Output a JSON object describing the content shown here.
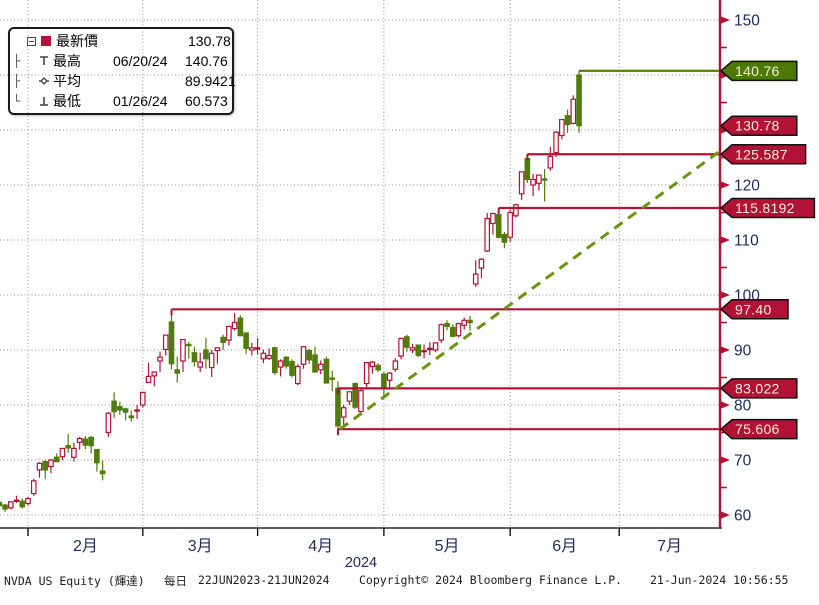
{
  "legend": {
    "rows": [
      {
        "icon": "last-price-square",
        "label": "最新價",
        "date": "",
        "value": "130.78"
      },
      {
        "icon": "high-marker",
        "label": "最高",
        "date": "06/20/24",
        "value": "140.76"
      },
      {
        "icon": "average-marker",
        "label": "平均",
        "date": "",
        "value": "89.9421"
      },
      {
        "icon": "low-marker",
        "label": "最低",
        "date": "01/26/24",
        "value": "60.573"
      }
    ]
  },
  "footer": {
    "security": "NVDA US Equity (輝達)",
    "periodicity": "每日",
    "range": "22JUN2023-21JUN2024",
    "copyright": "Copyright© 2024 Bloomberg Finance L.P.",
    "timestamp": "21-Jun-2024 10:56:55"
  },
  "colors": {
    "up": "#b11236",
    "down": "#4f7c0a",
    "axis_red": "#b11236",
    "tag_green": "#4c7a05",
    "tag_text": "#f5efd9",
    "grid": "#909090",
    "tick_label": "#1e2a5e",
    "trendline": "#68940e",
    "x_axis_black": "#000000"
  },
  "chart_data": {
    "type": "candlestick",
    "title": "NVDA US Equity (輝達) daily candles 22JUN2023-21JUN2024 (visible window Jan-Jul 2024)",
    "legend_position": "top-left",
    "grid": "dotted",
    "y_axis": {
      "side": "right",
      "ylim": [
        57.6,
        153.6
      ],
      "major_ticks": [
        60,
        70,
        80,
        90,
        100,
        110,
        120,
        130,
        140,
        150
      ],
      "minor_ticks": [
        65,
        75,
        85,
        95,
        105,
        115,
        125,
        135,
        145
      ]
    },
    "x_axis": {
      "year_label": "2024",
      "months": [
        {
          "label": "2月",
          "start_index": 5
        },
        {
          "label": "3月",
          "start_index": 25
        },
        {
          "label": "4月",
          "start_index": 45
        },
        {
          "label": "5月",
          "start_index": 67
        },
        {
          "label": "6月",
          "start_index": 89
        },
        {
          "label": "7月",
          "start_index": 108
        }
      ]
    },
    "price_markers": [
      {
        "value": "140.76",
        "price": 140.76,
        "color": "green",
        "has_line": true,
        "anchor_index": 101
      },
      {
        "value": "130.78",
        "price": 130.78,
        "color": "red",
        "has_line": false,
        "anchor_index": null
      },
      {
        "value": "125.587",
        "price": 125.587,
        "color": "red",
        "has_line": true,
        "anchor_index": 92
      },
      {
        "value": "115.8192",
        "price": 115.8192,
        "color": "red",
        "has_line": true,
        "anchor_index": 87
      },
      {
        "value": "97.40",
        "price": 97.4,
        "color": "red",
        "has_line": true,
        "anchor_index": 30
      },
      {
        "value": "83.022",
        "price": 83.022,
        "color": "red",
        "has_line": true,
        "anchor_index": 59
      },
      {
        "value": "75.606",
        "price": 75.606,
        "color": "red",
        "has_line": true,
        "anchor_index": 59
      }
    ],
    "trendline": {
      "from_index": 59,
      "from_price": 75.606,
      "to_price": 126.3,
      "style": "dashed",
      "note": "olive dashed support line from 04/19 low to right axis"
    },
    "candles_format": [
      "open",
      "high",
      "low",
      "close"
    ],
    "candle_convention": "up days hollow red, down days solid olive-green",
    "candles": [
      [
        62.3,
        62.9,
        61.4,
        61.7
      ],
      [
        61.8,
        62.0,
        60.573,
        61.1
      ],
      [
        61.3,
        62.5,
        61.0,
        62.4
      ],
      [
        62.5,
        63.5,
        62.2,
        62.7
      ],
      [
        62.5,
        63.0,
        61.2,
        61.5
      ],
      [
        62.1,
        63.3,
        61.7,
        63.0
      ],
      [
        63.9,
        66.6,
        63.5,
        66.2
      ],
      [
        68.2,
        69.6,
        66.8,
        69.4
      ],
      [
        69.7,
        70.0,
        66.5,
        68.2
      ],
      [
        68.8,
        70.2,
        67.6,
        70.0
      ],
      [
        70.5,
        71.2,
        69.6,
        69.7
      ],
      [
        70.6,
        72.2,
        70.0,
        72.1
      ],
      [
        72.6,
        74.7,
        71.3,
        72.2
      ],
      [
        70.5,
        73.1,
        69.7,
        72.1
      ],
      [
        73.2,
        74.2,
        71.9,
        73.9
      ],
      [
        73.8,
        74.3,
        72.0,
        72.7
      ],
      [
        74.1,
        74.4,
        71.2,
        72.6
      ],
      [
        71.9,
        72.0,
        67.9,
        69.5
      ],
      [
        68.0,
        69.9,
        66.3,
        67.5
      ],
      [
        75.0,
        78.7,
        74.2,
        78.5
      ],
      [
        80.7,
        82.3,
        77.6,
        78.8
      ],
      [
        79.7,
        80.6,
        78.2,
        79.1
      ],
      [
        79.3,
        79.5,
        77.2,
        78.7
      ],
      [
        78.0,
        79.0,
        77.0,
        77.7
      ],
      [
        79.0,
        80.0,
        77.5,
        79.1
      ],
      [
        80.0,
        82.3,
        79.5,
        82.3
      ],
      [
        84.1,
        87.7,
        84.0,
        85.2
      ],
      [
        85.3,
        86.1,
        83.4,
        86.0
      ],
      [
        88.0,
        89.7,
        86.0,
        88.7
      ],
      [
        90.1,
        92.8,
        89.0,
        92.7
      ],
      [
        95.1,
        97.4,
        86.5,
        87.5
      ],
      [
        86.4,
        88.8,
        84.1,
        85.8
      ],
      [
        88.0,
        92.0,
        86.0,
        91.9
      ],
      [
        91.0,
        91.5,
        88.4,
        90.9
      ],
      [
        89.5,
        90.6,
        87.0,
        87.9
      ],
      [
        86.9,
        89.5,
        86.0,
        87.8
      ],
      [
        90.0,
        92.2,
        86.6,
        88.4
      ],
      [
        86.8,
        90.0,
        85.1,
        89.4
      ],
      [
        89.9,
        90.4,
        87.5,
        90.4
      ],
      [
        92.3,
        92.8,
        90.0,
        91.4
      ],
      [
        91.8,
        94.4,
        90.8,
        94.3
      ],
      [
        93.9,
        96.7,
        93.5,
        95.0
      ],
      [
        95.8,
        96.3,
        92.5,
        92.6
      ],
      [
        93.1,
        93.2,
        89.3,
        90.3
      ],
      [
        90.0,
        91.3,
        89.0,
        90.4
      ],
      [
        90.3,
        92.2,
        89.2,
        90.4
      ],
      [
        88.4,
        90.1,
        87.6,
        89.4
      ],
      [
        88.5,
        90.3,
        88.2,
        89.0
      ],
      [
        90.4,
        90.6,
        85.5,
        85.9
      ],
      [
        86.9,
        88.3,
        85.2,
        88.0
      ],
      [
        88.7,
        88.8,
        86.6,
        87.1
      ],
      [
        87.9,
        88.3,
        85.0,
        85.4
      ],
      [
        83.9,
        87.4,
        83.6,
        87.0
      ],
      [
        87.4,
        90.7,
        86.6,
        90.6
      ],
      [
        89.9,
        90.2,
        87.5,
        88.2
      ],
      [
        89.1,
        90.6,
        85.9,
        86.0
      ],
      [
        86.4,
        88.1,
        85.6,
        87.4
      ],
      [
        88.3,
        88.8,
        83.9,
        84.0
      ],
      [
        84.9,
        86.2,
        82.5,
        84.7
      ],
      [
        83.022,
        84.3,
        75.606,
        76.2
      ],
      [
        77.8,
        80.0,
        76.4,
        79.5
      ],
      [
        80.7,
        82.5,
        80.0,
        82.4
      ],
      [
        83.9,
        84.1,
        79.3,
        79.6
      ],
      [
        78.8,
        83.0,
        78.7,
        82.6
      ],
      [
        83.9,
        87.8,
        83.2,
        87.7
      ],
      [
        87.0,
        88.0,
        85.7,
        87.8
      ],
      [
        87.2,
        87.6,
        86.0,
        86.4
      ],
      [
        85.6,
        86.0,
        81.2,
        83.0
      ],
      [
        84.5,
        86.0,
        83.0,
        85.8
      ],
      [
        86.5,
        88.5,
        86.0,
        88.0
      ],
      [
        88.9,
        92.2,
        88.3,
        92.1
      ],
      [
        92.4,
        92.8,
        89.7,
        90.5
      ],
      [
        90.0,
        91.1,
        89.4,
        90.4
      ],
      [
        90.9,
        91.0,
        88.7,
        89.0
      ],
      [
        89.8,
        91.0,
        88.5,
        89.9
      ],
      [
        90.2,
        91.4,
        89.1,
        90.3
      ],
      [
        90.0,
        91.4,
        89.6,
        91.3
      ],
      [
        91.8,
        94.8,
        91.3,
        94.6
      ],
      [
        94.8,
        95.4,
        93.6,
        94.3
      ],
      [
        94.1,
        94.7,
        92.3,
        92.5
      ],
      [
        92.6,
        95.0,
        92.3,
        94.8
      ],
      [
        94.5,
        95.9,
        93.7,
        95.4
      ],
      [
        95.4,
        96.2,
        93.5,
        95.0
      ],
      [
        102.0,
        106.3,
        101.5,
        103.8
      ],
      [
        104.9,
        106.7,
        103.1,
        106.5
      ],
      [
        108.0,
        114.9,
        107.8,
        113.9
      ],
      [
        113.0,
        115.0,
        111.0,
        114.8
      ],
      [
        114.6,
        115.8192,
        110.3,
        110.5
      ],
      [
        111.0,
        111.5,
        108.5,
        109.6
      ],
      [
        110.5,
        115.5,
        109.7,
        115.0
      ],
      [
        114.4,
        116.6,
        114.1,
        116.4
      ],
      [
        118.4,
        122.5,
        117.3,
        122.4
      ],
      [
        124.8,
        125.587,
        120.4,
        121.0
      ],
      [
        120.0,
        122.0,
        118.0,
        121.0
      ],
      [
        120.3,
        121.9,
        119.0,
        121.8
      ],
      [
        121.1,
        122.9,
        117.0,
        120.9
      ],
      [
        123.1,
        126.9,
        122.6,
        125.2
      ],
      [
        125.9,
        129.8,
        125.1,
        129.6
      ],
      [
        129.0,
        132.0,
        128.3,
        131.9
      ],
      [
        132.6,
        133.7,
        129.5,
        131.0
      ],
      [
        131.2,
        136.3,
        131.0,
        135.6
      ],
      [
        140.0,
        140.76,
        129.5,
        130.78
      ]
    ]
  }
}
